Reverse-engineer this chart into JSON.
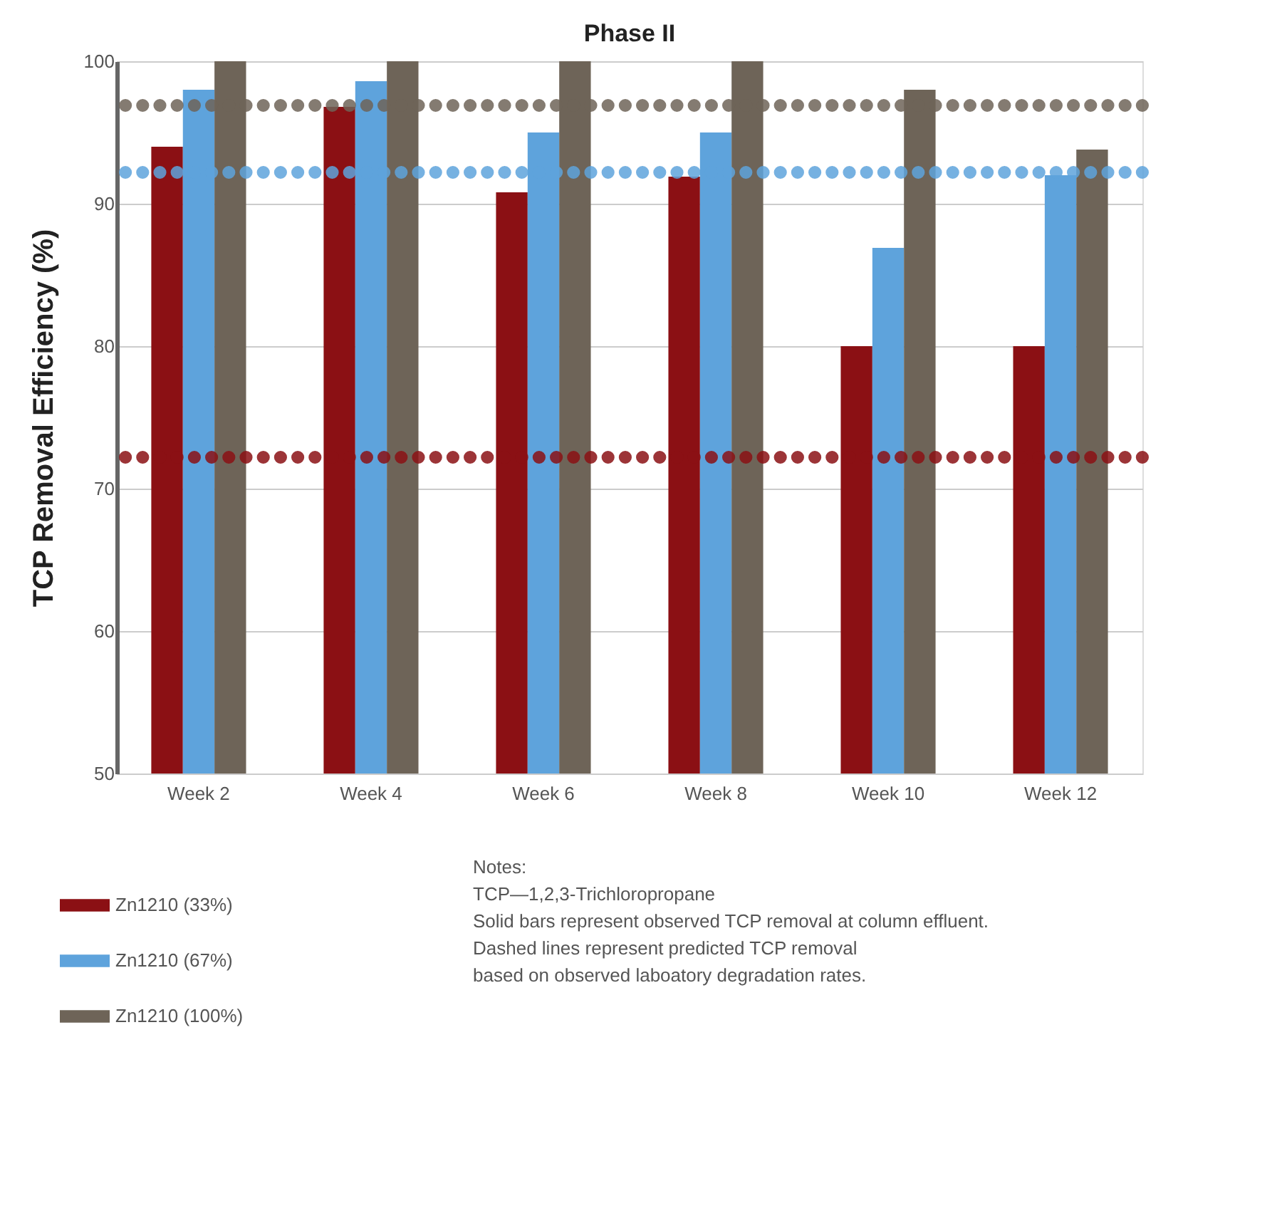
{
  "chart_data": {
    "type": "bar",
    "title": "Phase II",
    "ylabel": "TCP Removal Efficiency (%)",
    "categories": [
      "Week 2",
      "Week 4",
      "Week 6",
      "Week 8",
      "Week 10",
      "Week 12"
    ],
    "series": [
      {
        "name": "Zn1210 (33%)",
        "color": "#8b1014",
        "values": [
          94,
          96.8,
          90.8,
          91.9,
          80,
          80
        ]
      },
      {
        "name": "Zn1210 (67%)",
        "color": "#5ea3dc",
        "values": [
          98,
          98.6,
          95,
          95,
          86.9,
          92
        ]
      },
      {
        "name": "Zn1210 (100%)",
        "color": "#6e6458",
        "values": [
          100,
          100,
          100,
          100,
          98,
          93.8
        ]
      }
    ],
    "ylim": [
      50,
      100
    ],
    "yticks": [
      50,
      60,
      70,
      80,
      90,
      100
    ],
    "grid": "y",
    "legend": "bottom left",
    "ref_lines": [
      {
        "axis": "y",
        "value": 96.9,
        "color": "#6e6458",
        "line_style": "dotted"
      },
      {
        "axis": "y",
        "value": 92.2,
        "color": "#5ea3dc",
        "line_style": "dotted"
      },
      {
        "axis": "y",
        "value": 72.2,
        "color": "#8b1014",
        "line_style": "dotted"
      }
    ],
    "annotations": [
      "Notes:",
      "TCP—1,2,3-Trichloropropane",
      "Solid bars represent observed TCP removal at column effluent.",
      "Dashed lines represent predicted TCP removal",
      "based on observed laboatory degradation rates."
    ]
  }
}
